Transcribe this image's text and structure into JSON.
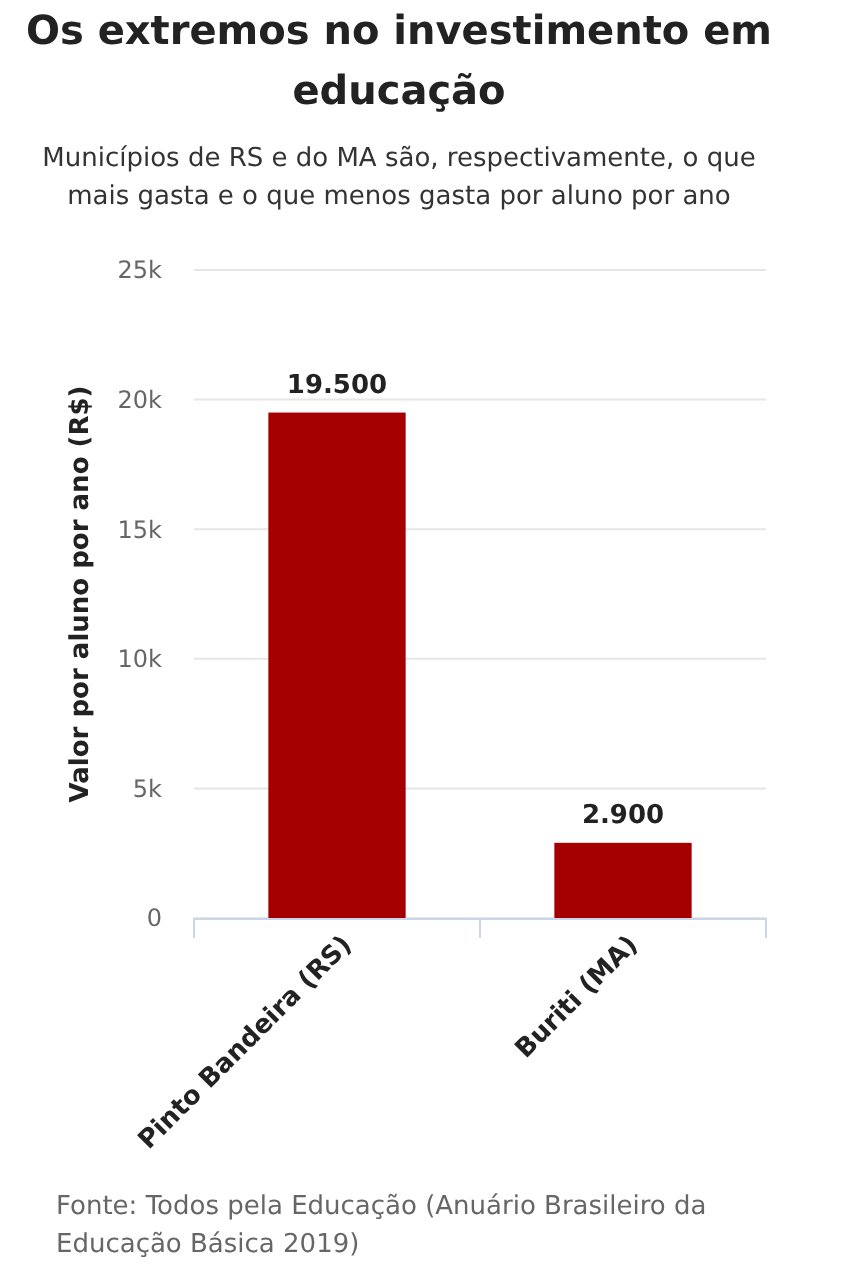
{
  "chart_data": {
    "type": "bar",
    "title": "Os extremos no investimento em educação",
    "subtitle": "Municípios de RS e do MA são, respectivamente, o que mais gasta e o que menos gasta por aluno por ano",
    "ylabel": "Valor por aluno por ano (R$)",
    "categories": [
      "Pinto Bandeira (RS)",
      "Buriti (MA)"
    ],
    "values": [
      19500,
      2900
    ],
    "value_labels": [
      "19.500",
      "2.900"
    ],
    "color": "#a50000",
    "ylim": [
      0,
      25000
    ],
    "yticks": [
      {
        "value": 0,
        "label": "0"
      },
      {
        "value": 5000,
        "label": "5k"
      },
      {
        "value": 10000,
        "label": "10k"
      },
      {
        "value": 15000,
        "label": "15k"
      },
      {
        "value": 20000,
        "label": "20k"
      },
      {
        "value": 25000,
        "label": "25k"
      }
    ],
    "grid": "y",
    "annotations": [
      "Fonte: Todos pela Educação (Anuário Brasileiro da Educação Básica 2019)"
    ]
  }
}
